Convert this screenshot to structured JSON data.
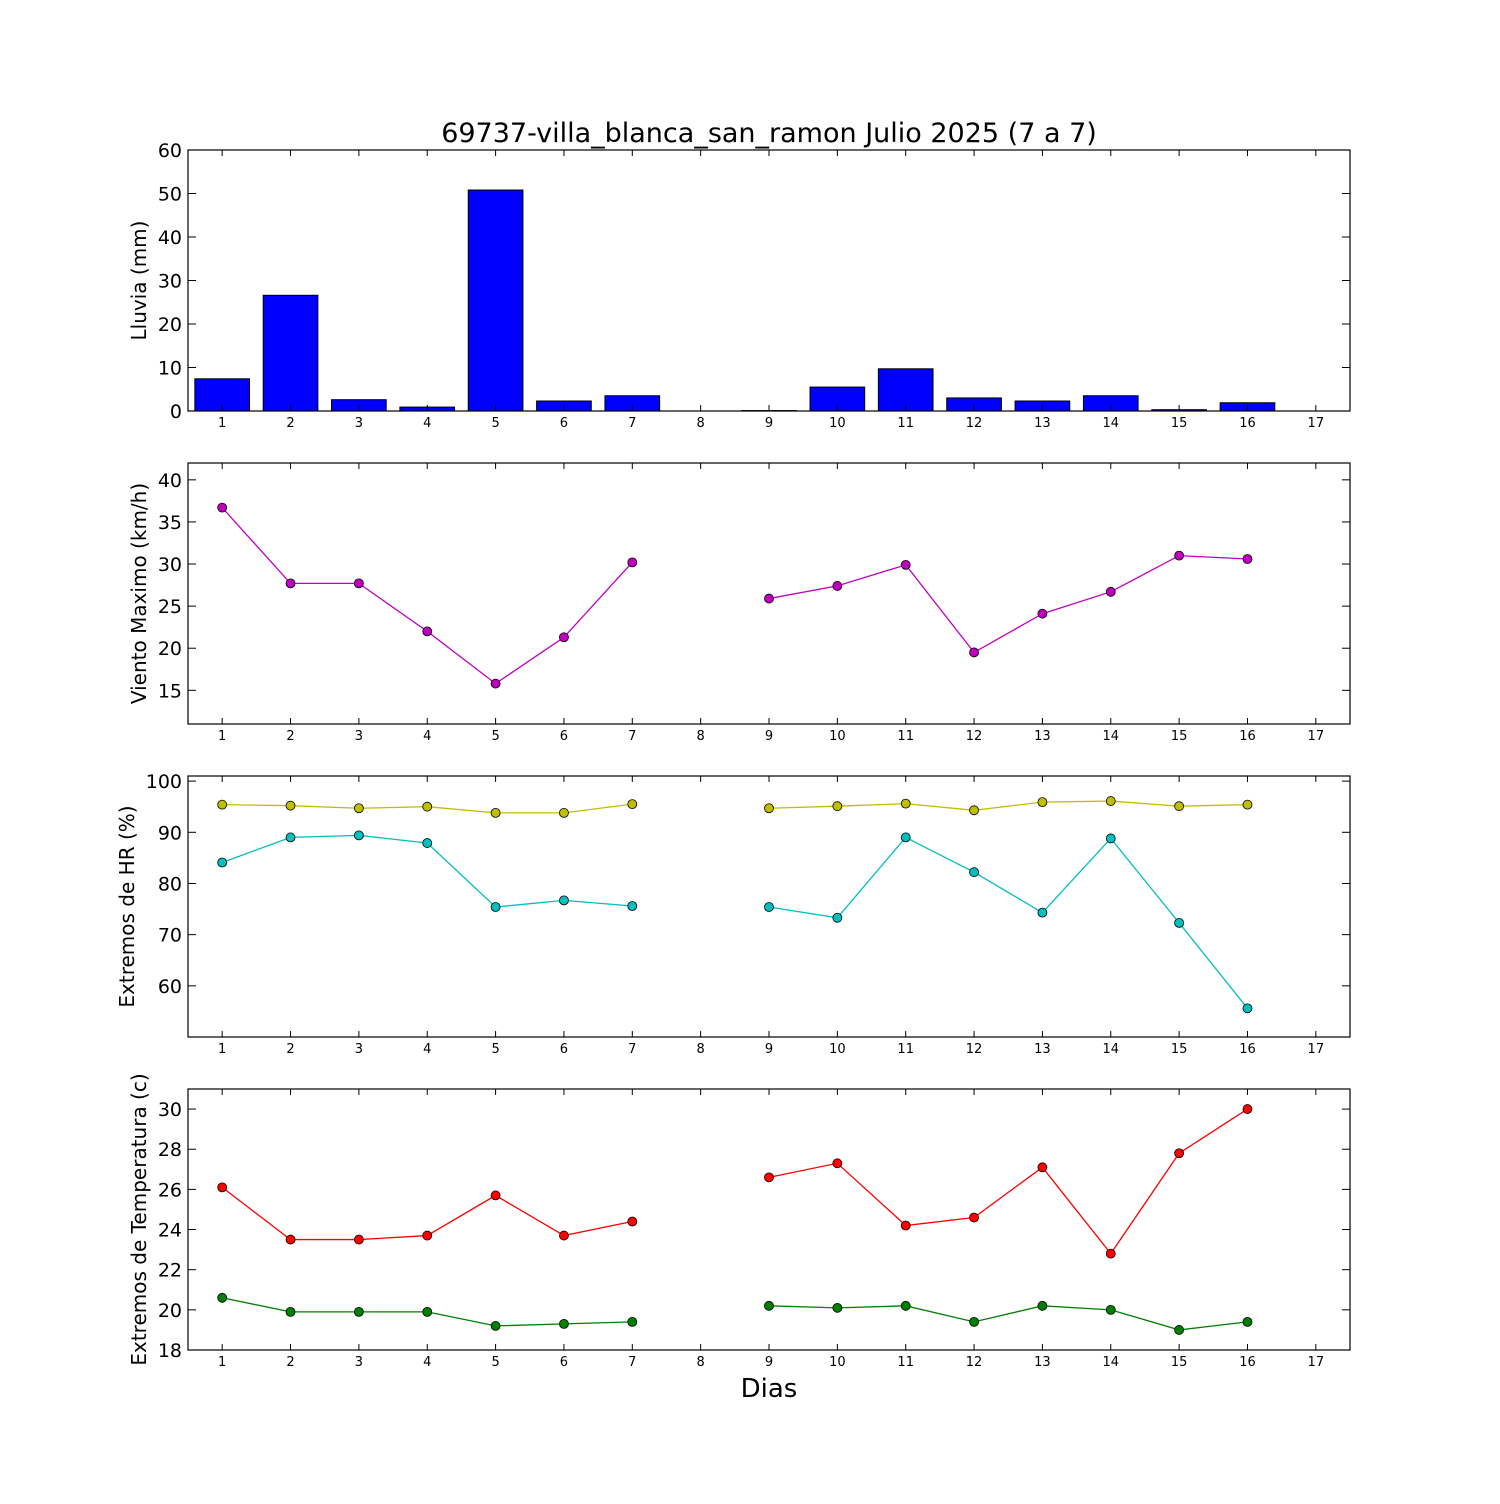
{
  "chart_data": {
    "type": "multi-panel",
    "title": "69737-villa_blanca_san_ramon Julio 2025  (7 a 7)",
    "xlabel": "Dias",
    "x": [
      1,
      2,
      3,
      4,
      5,
      6,
      7,
      8,
      9,
      10,
      11,
      12,
      13,
      14,
      15,
      16,
      17
    ],
    "xlim": [
      0.5,
      17.5
    ],
    "panels": [
      {
        "type": "bar",
        "ylabel": "Lluvia (mm)",
        "ylim": [
          0,
          60
        ],
        "yticks": [
          0,
          10,
          20,
          30,
          40,
          50,
          60
        ],
        "series": [
          {
            "color": "#0000ff",
            "values": [
              7.4,
              26.6,
              2.6,
              0.9,
              50.8,
              2.3,
              3.5,
              null,
              0.1,
              5.5,
              9.7,
              3.0,
              2.3,
              3.5,
              0.3,
              1.9,
              null
            ]
          }
        ]
      },
      {
        "type": "line",
        "ylabel": "Viento Maximo (km/h)",
        "ylim": [
          11,
          42
        ],
        "yticks": [
          15,
          20,
          25,
          30,
          35,
          40
        ],
        "series": [
          {
            "color": "#bf00bf",
            "values": [
              36.7,
              27.7,
              27.7,
              22.0,
              15.8,
              21.3,
              30.2,
              null,
              25.9,
              27.4,
              29.9,
              19.5,
              24.1,
              26.7,
              31.0,
              30.6,
              null
            ]
          }
        ]
      },
      {
        "type": "line",
        "ylabel": "Extremos de HR (%)",
        "ylim": [
          50,
          101
        ],
        "yticks": [
          60,
          70,
          80,
          90,
          100
        ],
        "series": [
          {
            "color": "#bfbf00",
            "values": [
              95.4,
              95.2,
              94.7,
              95.0,
              93.8,
              93.8,
              95.5,
              null,
              94.7,
              95.1,
              95.6,
              94.3,
              95.9,
              96.1,
              95.1,
              95.4,
              null
            ]
          },
          {
            "color": "#00bfbf",
            "values": [
              84.1,
              89.0,
              89.4,
              87.9,
              75.4,
              76.7,
              75.6,
              null,
              75.4,
              73.3,
              89.0,
              82.2,
              74.3,
              88.8,
              72.3,
              55.6,
              null
            ]
          }
        ]
      },
      {
        "type": "line",
        "ylabel": "Extremos de Temperatura (c)",
        "ylim": [
          18,
          31
        ],
        "yticks": [
          18,
          20,
          22,
          24,
          26,
          28,
          30
        ],
        "series": [
          {
            "color": "#ff0000",
            "values": [
              26.1,
              23.5,
              23.5,
              23.7,
              25.7,
              23.7,
              24.4,
              null,
              26.6,
              27.3,
              24.2,
              24.6,
              27.1,
              22.8,
              27.8,
              30.0,
              null
            ]
          },
          {
            "color": "#008000",
            "values": [
              20.6,
              19.9,
              19.9,
              19.9,
              19.2,
              19.3,
              19.4,
              null,
              20.2,
              20.1,
              20.2,
              19.4,
              20.2,
              20.0,
              19.0,
              19.4,
              null
            ]
          }
        ]
      }
    ]
  }
}
